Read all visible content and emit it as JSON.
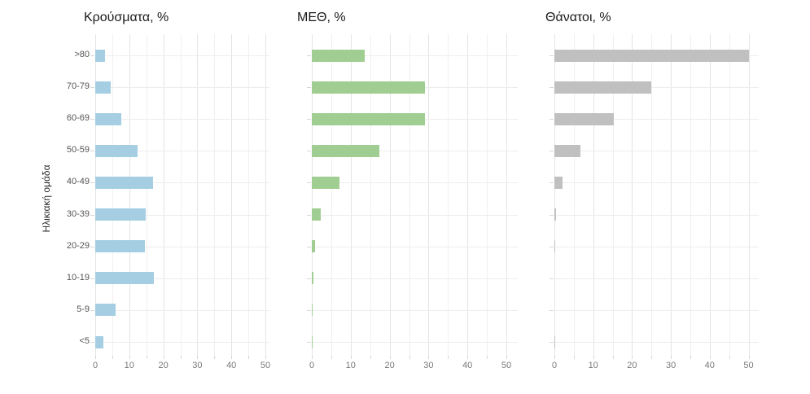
{
  "figure": {
    "kind": "three-panel horizontal bar chart",
    "background": "#ffffff",
    "grid_color_major": "#e4e4e4",
    "grid_color_minor": "#f0f0f0",
    "y_axis_title": "Ηλικιακή ομάδα"
  },
  "chart_data": {
    "type": "bar",
    "orientation": "horizontal",
    "grid": true,
    "legend": false,
    "xlabel": "",
    "ylabel": "Ηλικιακή ομάδα",
    "xlim": [
      0,
      52
    ],
    "x_ticks": [
      0,
      10,
      20,
      30,
      40,
      50
    ],
    "categories": [
      ">80",
      "70-79",
      "60-69",
      "50-59",
      "40-49",
      "30-39",
      "20-29",
      "10-19",
      "5-9",
      "<5"
    ],
    "series": [
      {
        "name": "Κρούσματα, %",
        "color": "#a5cee3",
        "values": [
          2.8,
          4.6,
          7.7,
          12.5,
          17.0,
          14.8,
          14.5,
          17.3,
          6.0,
          2.3
        ]
      },
      {
        "name": "ΜΕΘ, %",
        "color": "#a0cd91",
        "values": [
          13.6,
          29.0,
          29.1,
          17.4,
          7.2,
          2.3,
          0.9,
          0.4,
          0.05,
          0.3
        ]
      },
      {
        "name": "Θάνατοι, %",
        "color": "#c0c0c0",
        "values": [
          50.0,
          25.0,
          15.4,
          6.7,
          2.1,
          0.4,
          0.2,
          0.0,
          0.0,
          0.1
        ]
      }
    ]
  }
}
